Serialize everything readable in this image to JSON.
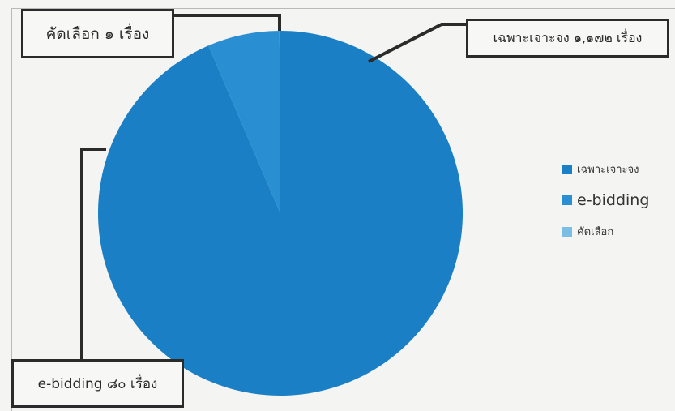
{
  "chart_data": {
    "type": "pie",
    "title": "",
    "categories": [
      "เฉพาะเจาะจง",
      "e-bidding",
      "คัดเลือก"
    ],
    "values": [
      1172,
      80,
      1
    ],
    "colors": [
      "#1a7fc4",
      "#2a8fd2",
      "#7cbde6"
    ],
    "legend": {
      "position": "right",
      "entries": [
        "เฉพาะเจาะจง",
        "e-bidding",
        "คัดเลือก"
      ]
    },
    "annotations": [
      {
        "category": "คัดเลือก",
        "text": "คัดเลือก ๑ เรื่อง"
      },
      {
        "category": "เฉพาะเจาะจง",
        "text": "เฉพาะเจาะจง ๑,๑๗๒ เรื่อง"
      },
      {
        "category": "e-bidding",
        "text": "e-bidding ๘๐ เรื่อง"
      }
    ]
  }
}
